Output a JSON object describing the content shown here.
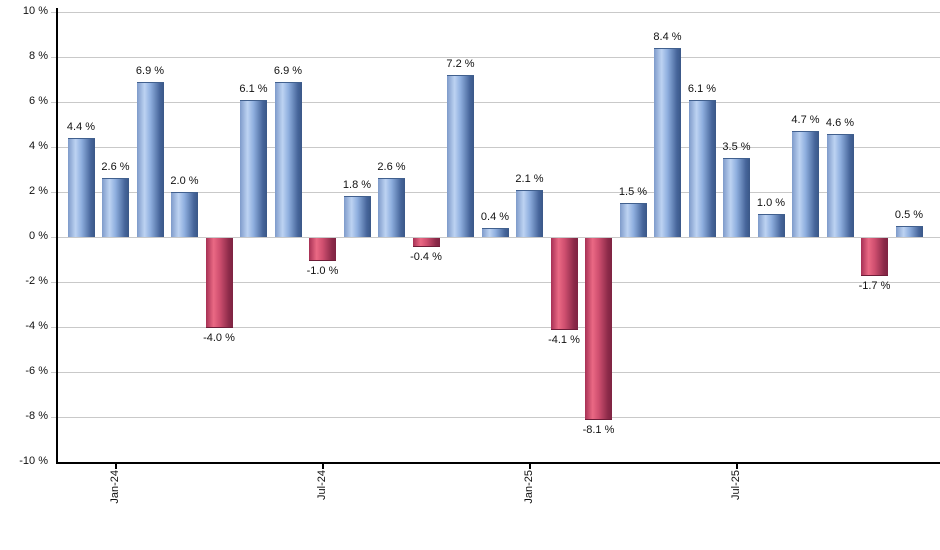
{
  "chart_data": {
    "type": "bar",
    "title": "",
    "xlabel": "",
    "ylabel": "",
    "ylim": [
      -10,
      10
    ],
    "y_tick_step": 2,
    "grid": "horizontal",
    "legend": false,
    "values": [
      4.4,
      2.6,
      6.9,
      2.0,
      -4.0,
      6.1,
      6.9,
      -1.0,
      1.8,
      2.6,
      -0.4,
      7.2,
      0.4,
      2.1,
      -4.1,
      -8.1,
      1.5,
      8.4,
      6.1,
      3.5,
      1.0,
      4.7,
      4.6,
      -1.7,
      0.5
    ],
    "bar_value_labels": [
      "4.4 %",
      "2.6 %",
      "6.9 %",
      "2.0 %",
      "-4.0 %",
      "6.1 %",
      "6.9 %",
      "-1.0 %",
      "1.8 %",
      "2.6 %",
      "-0.4 %",
      "7.2 %",
      "0.4 %",
      "2.1 %",
      "-4.1 %",
      "-8.1 %",
      "1.5 %",
      "8.4 %",
      "6.1 %",
      "3.5 %",
      "1.0 %",
      "4.7 %",
      "4.6 %",
      "-1.7 %",
      "0.5 %"
    ],
    "x_ticks": [
      {
        "index": 1,
        "label": "Jan-24"
      },
      {
        "index": 7,
        "label": "Jul-24"
      },
      {
        "index": 13,
        "label": "Jan-25"
      },
      {
        "index": 19,
        "label": "Jul-25"
      }
    ],
    "y_ticks": [
      {
        "value": 10,
        "label": "10 %"
      },
      {
        "value": 8,
        "label": "8 %"
      },
      {
        "value": 6,
        "label": "6 %"
      },
      {
        "value": 4,
        "label": "4 %"
      },
      {
        "value": 2,
        "label": "2 %"
      },
      {
        "value": 0,
        "label": "0 %"
      },
      {
        "value": -2,
        "label": "-2 %"
      },
      {
        "value": -4,
        "label": "-4 %"
      },
      {
        "value": -6,
        "label": "-6 %"
      },
      {
        "value": -8,
        "label": "-8 %"
      },
      {
        "value": -10,
        "label": "-10 %"
      }
    ],
    "colors": {
      "positive_bar": "#6f93c7",
      "negative_bar": "#c64a67",
      "positive_gradient": [
        "#7e9aca 0%",
        "#bdd3f2 28%",
        "#8fafdf 50%",
        "#46659a 85%",
        "#3a5787 100%"
      ],
      "negative_gradient": [
        "#a63054 0%",
        "#ea6984 28%",
        "#d05070 50%",
        "#8c2a49 85%",
        "#7e2342 100%"
      ],
      "grid": "#c9c9c9",
      "axis": "#000000",
      "label": "#111111"
    }
  }
}
